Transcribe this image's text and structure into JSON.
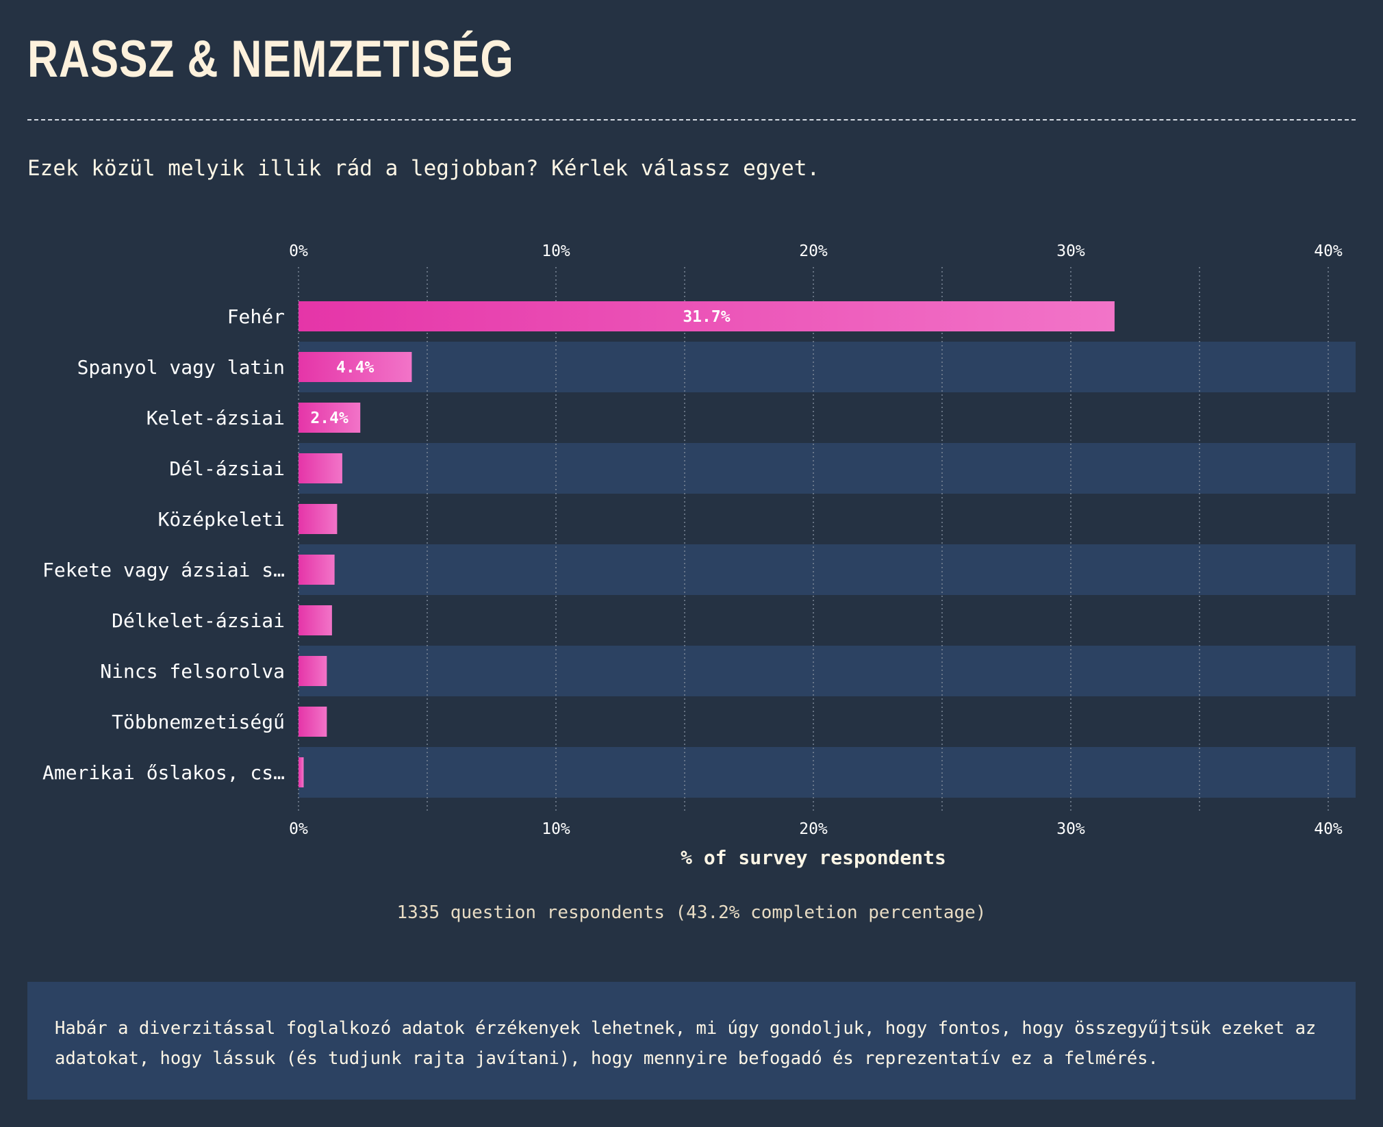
{
  "page": {
    "title": "RASSZ & NEMZETISÉG",
    "question": "Ezek közül melyik illik rád a legjobban? Kérlek válassz egyet.",
    "respondents": "1335 question respondents (43.2% completion percentage)",
    "note": "Habár a diverzitással foglalkozó adatok érzékenyek lehetnek, mi úgy gondoljuk, hogy fontos, hogy összegyűjtsük ezeket az adatokat, hogy lássuk (és tudjunk rajta javítani), hogy mennyire befogadó és reprezentatív ez a felmérés."
  },
  "colors": {
    "background": "#253243",
    "band": "#2c4262",
    "bar_start": "#e535a8",
    "bar_end": "#f274c8",
    "grid": "#7d8898",
    "text": "#fdf6e6"
  },
  "chart_data": {
    "type": "bar",
    "orientation": "horizontal",
    "categories": [
      "Fehér",
      "Spanyol vagy latin",
      "Kelet-ázsiai",
      "Dél-ázsiai",
      "Középkeleti",
      "Fekete vagy ázsiai s…",
      "Délkelet-ázsiai",
      "Nincs felsorolva",
      "Többnemzetiségű",
      "Amerikai őslakos, cs…"
    ],
    "values": [
      31.7,
      4.4,
      2.4,
      1.7,
      1.5,
      1.4,
      1.3,
      1.1,
      1.1,
      0.2
    ],
    "value_labels": [
      "31.7%",
      "4.4%",
      "2.4%",
      "",
      "",
      "",
      "",
      "",
      "",
      ""
    ],
    "xlim": [
      0,
      41
    ],
    "major_ticks": [
      0,
      10,
      20,
      30,
      40
    ],
    "tick_labels": [
      "0%",
      "10%",
      "20%",
      "30%",
      "40%"
    ],
    "minor_gridlines": [
      5,
      15,
      25,
      35
    ],
    "xlabel": "% of survey respondents",
    "grid": true,
    "tick_position": "top and bottom"
  }
}
